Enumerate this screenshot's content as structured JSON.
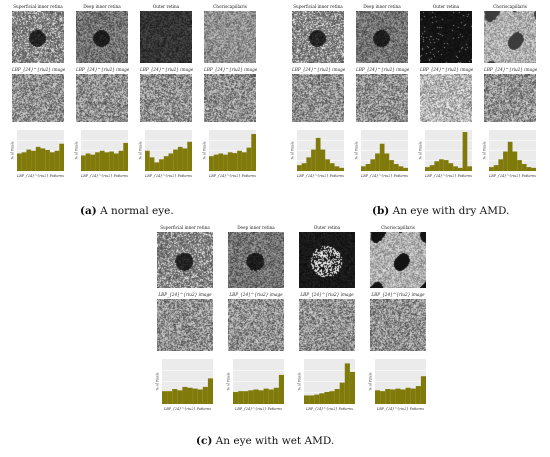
{
  "units": {
    "row_titles": [
      "Superficial inner retina",
      "Deep inner retina",
      "Outer retina",
      "Choriocapillaris"
    ],
    "lbp_image_label": "LBP_{24}^{riu2} image",
    "hist_ylabel": "% of Pixels",
    "hist_xlabel": "LBP_{24}^{riu2} Patterns"
  },
  "colors": {
    "bar": "#7f7a0a",
    "plot_bg": "#ebebeb",
    "grid": "#ffffff"
  },
  "panels": [
    {
      "id": "a",
      "caption_letter": "(a)",
      "caption_text": " A normal eye.",
      "chart_data": [
        {
          "type": "bar",
          "values": [
            0.45,
            0.48,
            0.55,
            0.52,
            0.62,
            0.58,
            0.54,
            0.48,
            0.52,
            0.7
          ]
        },
        {
          "type": "bar",
          "values": [
            0.4,
            0.45,
            0.42,
            0.48,
            0.52,
            0.48,
            0.5,
            0.45,
            0.52,
            0.72
          ]
        },
        {
          "type": "bar",
          "values": [
            0.52,
            0.35,
            0.22,
            0.3,
            0.38,
            0.45,
            0.55,
            0.62,
            0.58,
            0.75
          ]
        },
        {
          "type": "bar",
          "values": [
            0.38,
            0.42,
            0.45,
            0.42,
            0.48,
            0.46,
            0.52,
            0.48,
            0.6,
            0.95
          ]
        }
      ]
    },
    {
      "id": "b",
      "caption_letter": "(b)",
      "caption_text": " An eye with dry AMD.",
      "chart_data": [
        {
          "type": "bar",
          "values": [
            0.15,
            0.2,
            0.35,
            0.55,
            0.85,
            0.55,
            0.3,
            0.2,
            0.12,
            0.08
          ]
        },
        {
          "type": "bar",
          "values": [
            0.12,
            0.18,
            0.3,
            0.45,
            0.7,
            0.45,
            0.28,
            0.18,
            0.12,
            0.08
          ]
        },
        {
          "type": "bar",
          "values": [
            0.1,
            0.15,
            0.25,
            0.3,
            0.28,
            0.2,
            0.12,
            0.08,
            1.0,
            0.12
          ]
        },
        {
          "type": "bar",
          "values": [
            0.1,
            0.15,
            0.3,
            0.5,
            0.75,
            0.5,
            0.28,
            0.18,
            0.1,
            0.08
          ]
        }
      ]
    },
    {
      "id": "c",
      "caption_letter": "(c)",
      "caption_text": " An eye with wet AMD.",
      "chart_data": [
        {
          "type": "bar",
          "values": [
            0.3,
            0.3,
            0.35,
            0.32,
            0.4,
            0.38,
            0.36,
            0.34,
            0.4,
            0.6
          ]
        },
        {
          "type": "bar",
          "values": [
            0.28,
            0.3,
            0.3,
            0.32,
            0.34,
            0.32,
            0.36,
            0.34,
            0.38,
            0.68
          ]
        },
        {
          "type": "bar",
          "values": [
            0.2,
            0.2,
            0.22,
            0.25,
            0.28,
            0.3,
            0.35,
            0.5,
            0.95,
            0.75
          ]
        },
        {
          "type": "bar",
          "values": [
            0.32,
            0.3,
            0.35,
            0.34,
            0.36,
            0.34,
            0.38,
            0.36,
            0.42,
            0.65
          ]
        }
      ]
    }
  ]
}
